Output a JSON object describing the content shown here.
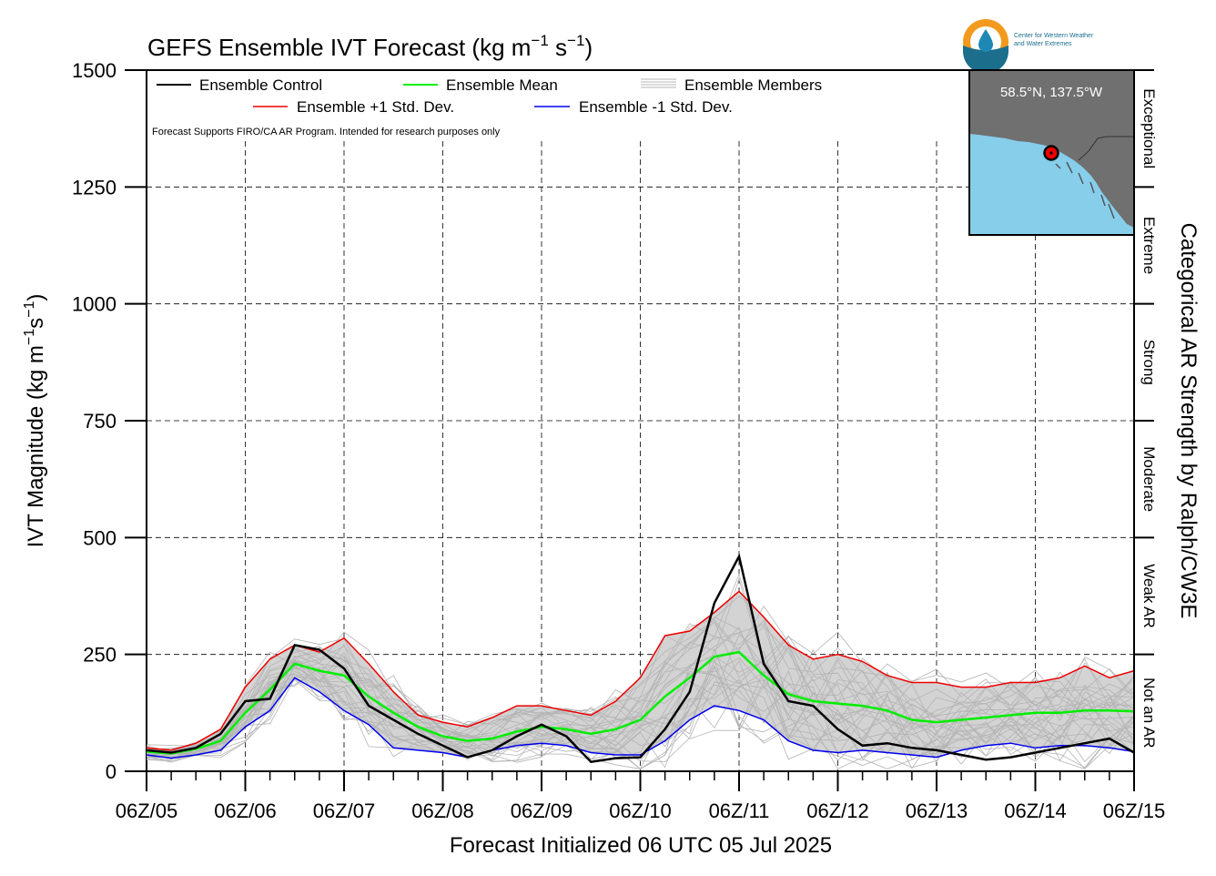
{
  "chart_data": {
    "type": "line",
    "title_main": "GEFS Ensemble IVT Forecast (kg m",
    "title_sup1": "−1",
    "title_mid": " s",
    "title_sup2": "−1",
    "title_end": ")",
    "ylabel_main": "IVT Magnitude (kg m",
    "ylabel_sup1": "−1",
    "ylabel_mid": "s",
    "ylabel_sup2": "−1",
    "ylabel_end": ")",
    "xlabel": "Forecast Initialized 06 UTC 05 Jul 2025",
    "right_label": "Categorical AR Strength by Ralph/CW3E",
    "note": "Forecast Supports FIRO/CA AR Program. Intended for research purposes only",
    "ylim": [
      0,
      1500
    ],
    "xlim_days": [
      0,
      10
    ],
    "yticks": [
      "0",
      "250",
      "500",
      "750",
      "1000",
      "1250",
      "1500"
    ],
    "yticks_values": [
      0,
      250,
      500,
      750,
      1000,
      1250,
      1500
    ],
    "xticks": [
      "06Z/05",
      "06Z/06",
      "06Z/07",
      "06Z/08",
      "06Z/09",
      "06Z/10",
      "06Z/11",
      "06Z/12",
      "06Z/13",
      "06Z/14",
      "06Z/15"
    ],
    "grid": true,
    "legend_position": "top-left",
    "legend": {
      "control": "Ensemble Control",
      "mean": "Ensemble Mean",
      "members": "Ensemble Members",
      "plus_sd": "Ensemble +1 Std. Dev.",
      "minus_sd": "Ensemble -1 Std. Dev."
    },
    "categories": [
      {
        "label": "Not an AR",
        "range": [
          0,
          250
        ]
      },
      {
        "label": "Weak AR",
        "range": [
          250,
          500
        ]
      },
      {
        "label": "Moderate",
        "range": [
          500,
          750
        ]
      },
      {
        "label": "Strong",
        "range": [
          750,
          1000
        ]
      },
      {
        "label": "Extreme",
        "range": [
          1000,
          1250
        ]
      },
      {
        "label": "Exceptional",
        "range": [
          1250,
          1500
        ]
      }
    ],
    "colors": {
      "control": "#000000",
      "mean": "#00ee00",
      "members": "#b4b4b4",
      "plus_sd": "#ee0000",
      "minus_sd": "#0000ee",
      "band": "#d3d3d3",
      "map_ocean": "#87ceeb",
      "map_land": "#707070"
    },
    "inset_label": "58.5°N, 137.5°W",
    "logo_line1": "Center for Western Weather",
    "logo_line2": "and Water Extremes",
    "series": {
      "x_days": [
        0,
        0.25,
        0.5,
        0.75,
        1,
        1.25,
        1.5,
        1.75,
        2,
        2.25,
        2.5,
        2.75,
        3,
        3.25,
        3.5,
        3.75,
        4,
        4.25,
        4.5,
        4.75,
        5,
        5.25,
        5.5,
        5.75,
        6,
        6.25,
        6.5,
        6.75,
        7,
        7.25,
        7.5,
        7.75,
        8,
        8.25,
        8.5,
        8.75,
        9,
        9.25,
        9.5,
        9.75,
        10
      ],
      "control": [
        45,
        40,
        50,
        80,
        150,
        155,
        270,
        260,
        220,
        140,
        110,
        80,
        55,
        30,
        45,
        75,
        100,
        75,
        20,
        28,
        30,
        90,
        170,
        360,
        460,
        230,
        150,
        140,
        90,
        55,
        60,
        50,
        45,
        35,
        25,
        30,
        40,
        50,
        60,
        70,
        40
      ],
      "plus_sd": [
        50,
        45,
        60,
        90,
        180,
        240,
        270,
        255,
        285,
        230,
        170,
        120,
        105,
        95,
        115,
        140,
        140,
        130,
        120,
        150,
        200,
        290,
        300,
        340,
        385,
        330,
        270,
        240,
        250,
        235,
        205,
        190,
        190,
        180,
        180,
        190,
        190,
        200,
        225,
        200,
        215
      ],
      "minus_sd": [
        35,
        28,
        35,
        45,
        95,
        130,
        200,
        170,
        130,
        100,
        50,
        45,
        40,
        30,
        45,
        55,
        60,
        55,
        40,
        35,
        35,
        65,
        110,
        140,
        130,
        110,
        65,
        45,
        40,
        45,
        40,
        35,
        30,
        45,
        55,
        60,
        50,
        55,
        55,
        50,
        42
      ],
      "mean": [
        42,
        38,
        48,
        65,
        125,
        175,
        230,
        215,
        205,
        160,
        125,
        95,
        75,
        65,
        70,
        85,
        95,
        90,
        80,
        90,
        110,
        160,
        200,
        245,
        255,
        205,
        165,
        150,
        145,
        140,
        130,
        110,
        105,
        110,
        115,
        120,
        125,
        125,
        130,
        130,
        128
      ]
    },
    "member_count": 30
  }
}
